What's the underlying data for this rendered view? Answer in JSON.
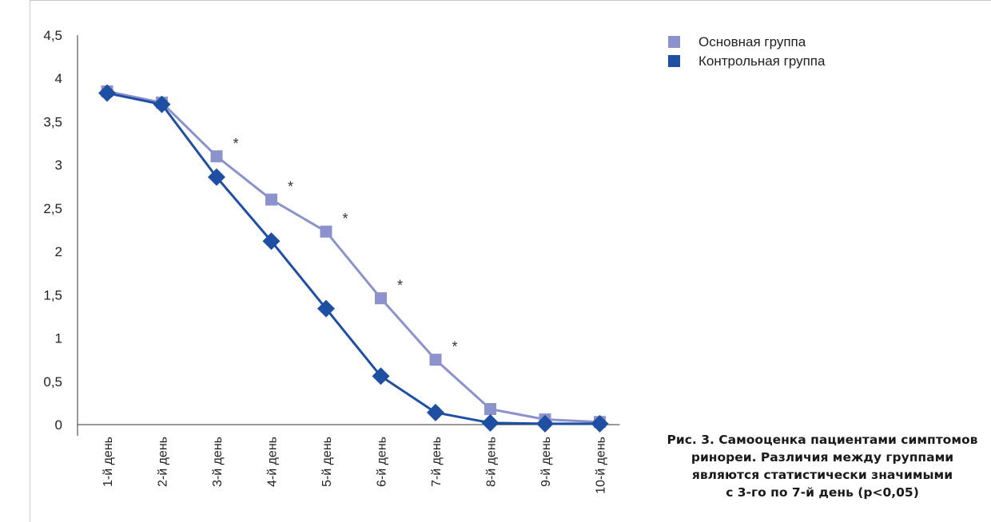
{
  "chart_data": {
    "type": "line",
    "categories": [
      "1-й день",
      "2-й день",
      "3-й день",
      "4-й день",
      "5-й день",
      "6-й день",
      "7-й день",
      "8-й день",
      "9-й день",
      "10-й день"
    ],
    "series": [
      {
        "name": "Основная группа",
        "values": [
          3.85,
          3.72,
          3.1,
          2.6,
          2.23,
          1.46,
          0.75,
          0.18,
          0.06,
          0.03
        ],
        "color": "#8b92cc",
        "marker": "square"
      },
      {
        "name": "Контрольная группа",
        "values": [
          3.83,
          3.7,
          2.86,
          2.12,
          1.34,
          0.56,
          0.14,
          0.02,
          0.01,
          0.01
        ],
        "color": "#1f4fa3",
        "marker": "diamond"
      }
    ],
    "significance_marks": [
      {
        "category": "3-й день",
        "label": "*"
      },
      {
        "category": "4-й день",
        "label": "*"
      },
      {
        "category": "5-й день",
        "label": "*"
      },
      {
        "category": "6-й день",
        "label": "*"
      },
      {
        "category": "7-й день",
        "label": "*"
      }
    ],
    "y_ticks": [
      "0",
      "0,5",
      "1",
      "1,5",
      "2",
      "2,5",
      "3",
      "3,5",
      "4",
      "4,5"
    ],
    "ylim": [
      0,
      4.5
    ],
    "legend_position": "top-right",
    "grid": false
  },
  "caption": {
    "lines": [
      "Рис. 3. Самооценка пациентами симптомов",
      "ринореи. Различия между группами",
      "являются статистически значимыми",
      "с 3-го по 7-й день (p<0,05)"
    ]
  }
}
